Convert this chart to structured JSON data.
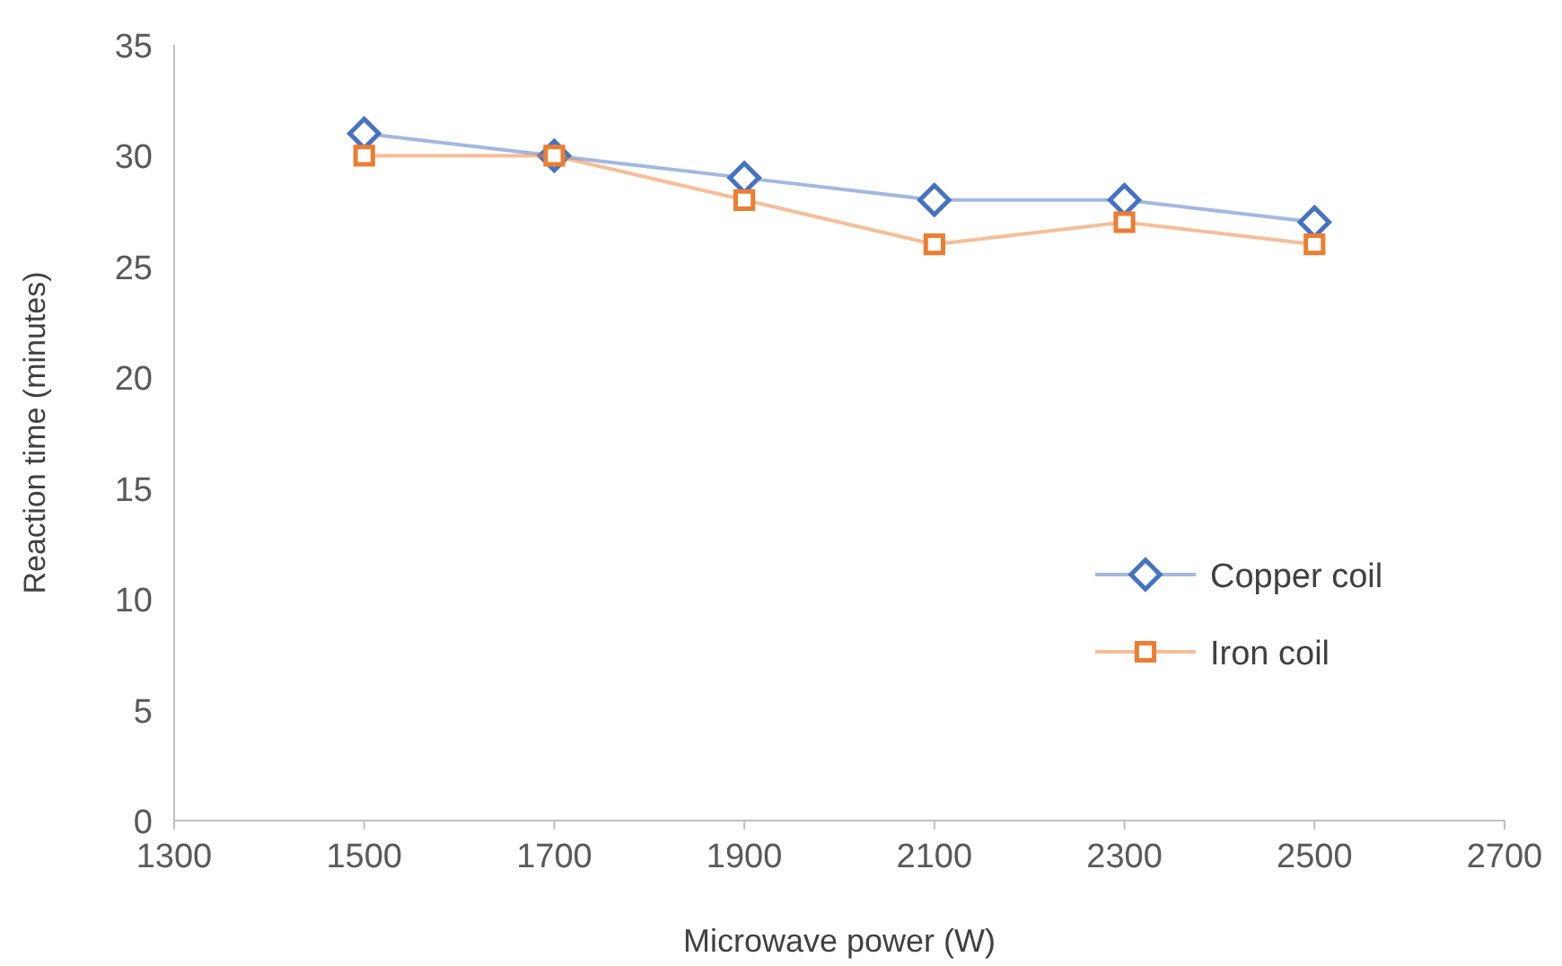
{
  "chart_data": {
    "type": "line",
    "xlabel": "Microwave power (W)",
    "ylabel": "Reaction time (minutes)",
    "x": [
      1500,
      1700,
      1900,
      2100,
      2300,
      2500
    ],
    "series": [
      {
        "name": "Copper coil",
        "color": "#4472c4",
        "marker": "diamond",
        "values": [
          31,
          30,
          29,
          28,
          28,
          27
        ]
      },
      {
        "name": "Iron coil",
        "color": "#ed7d31",
        "marker": "square",
        "values": [
          30,
          30,
          28,
          26,
          27,
          26
        ]
      }
    ],
    "xlim": [
      1300,
      2700
    ],
    "xticks": [
      1300,
      1500,
      1700,
      1900,
      2100,
      2300,
      2500,
      2700
    ],
    "ylim": [
      0,
      35
    ],
    "yticks": [
      0,
      5,
      10,
      15,
      20,
      25,
      30,
      35
    ],
    "legend": "right",
    "grid": false,
    "line_style": "solid"
  }
}
